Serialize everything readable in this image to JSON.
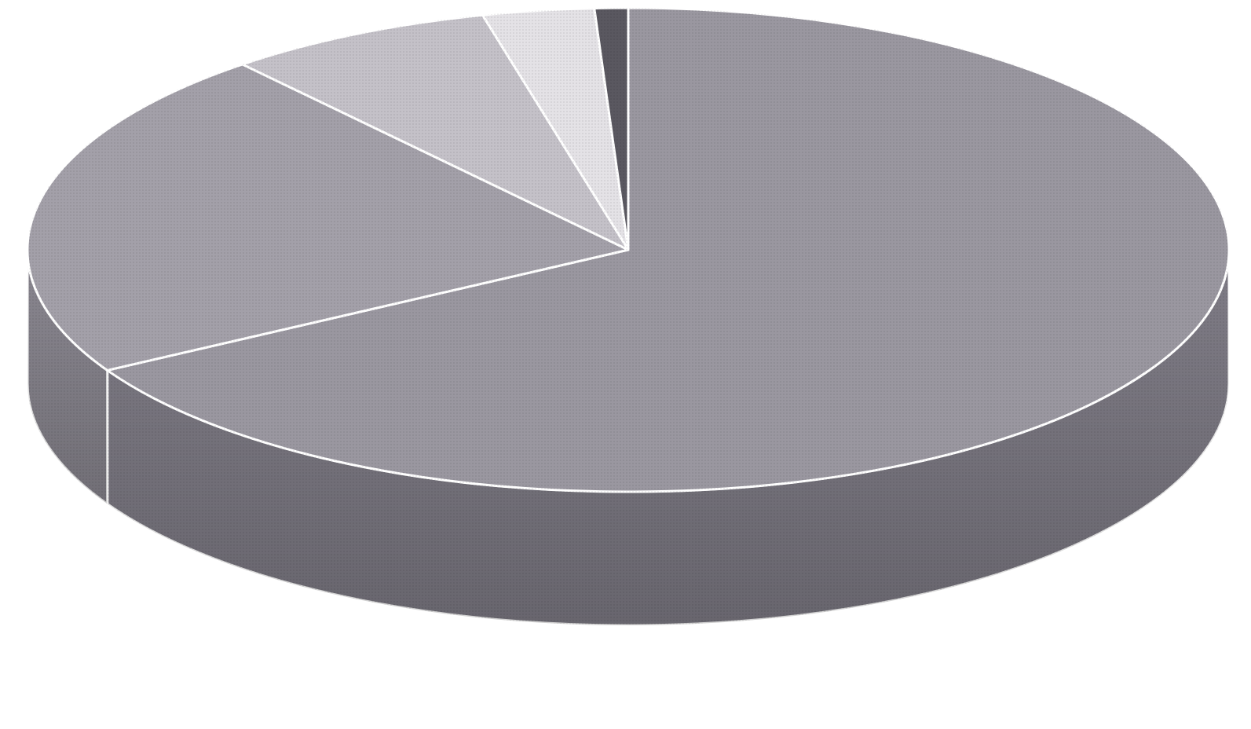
{
  "chart_data": {
    "type": "pie",
    "style": "3d",
    "legend": "none",
    "data_labels": "none",
    "slices": [
      {
        "value": 66.7,
        "color": "#9a97a0",
        "side_color": "#7f7c86"
      },
      {
        "value": 22.2,
        "color": "#a3a0a9",
        "side_color": "#8a8790"
      },
      {
        "value": 7.2,
        "color": "#c4c1c8",
        "side_color": "#aaa7ae"
      },
      {
        "value": 3.0,
        "color": "#e4e2e6",
        "side_color": "#c9c6cc"
      },
      {
        "value": 0.9,
        "color": "#5a5860",
        "side_color": "#48464e"
      }
    ]
  }
}
